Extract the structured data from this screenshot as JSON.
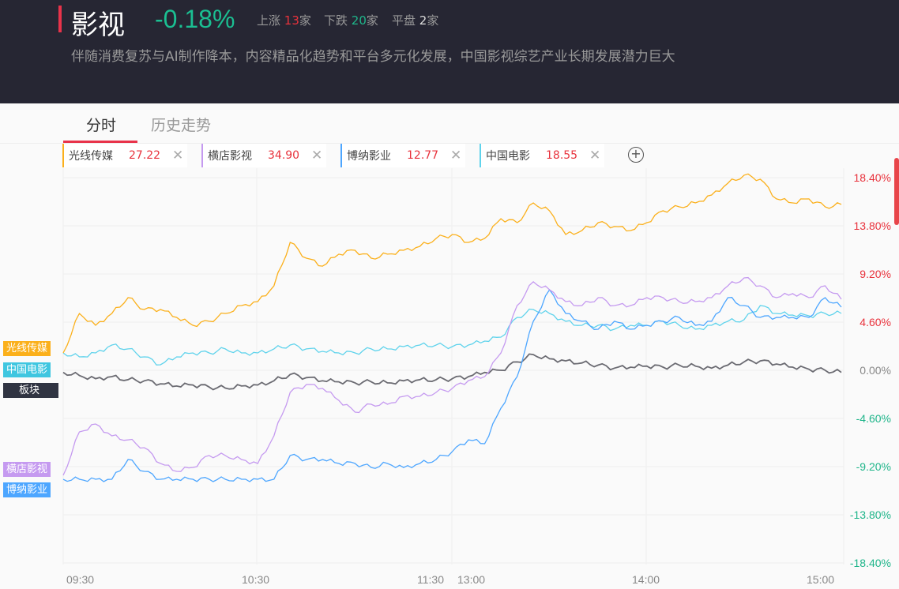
{
  "header": {
    "title": "影视",
    "change": "-0.18%",
    "up_label": "上涨",
    "up_count": "13",
    "down_label": "下跌",
    "down_count": "20",
    "flat_label": "平盘",
    "flat_count": "2",
    "unit": "家",
    "description": "伴随消费复苏与AI制作降本，内容精品化趋势和平台多元化发展，中国影视综艺产业长期发展潜力巨大"
  },
  "tabs": [
    {
      "label": "分时"
    },
    {
      "label": "历史走势"
    }
  ],
  "chips": [
    {
      "name": "光线传媒",
      "price": "27.22",
      "color": "#fbb01b"
    },
    {
      "name": "横店影视",
      "price": "34.90",
      "color": "#c59af0"
    },
    {
      "name": "博纳影业",
      "price": "12.77",
      "color": "#4da6ff"
    },
    {
      "name": "中国电影",
      "price": "18.55",
      "color": "#5fd3ec"
    }
  ],
  "tags": {
    "gx": "光线传媒",
    "zg": "中国电影",
    "bk": "板块",
    "hd": "横店影视",
    "bn": "博纳影业"
  },
  "chart_data": {
    "type": "line",
    "x_note": "5-minute samples 09:30-11:30, 13:00-15:00",
    "xticks": [
      "09:30",
      "10:30",
      "11:30",
      "13:00",
      "14:00",
      "15:00"
    ],
    "yticks": [
      "18.40%",
      "13.80%",
      "9.20%",
      "4.60%",
      "0.00%",
      "-4.60%",
      "-9.20%",
      "-13.80%",
      "-18.40%"
    ],
    "ylim": [
      -18.4,
      18.4
    ],
    "series": [
      {
        "name": "光线传媒",
        "color": "#fbb01b",
        "values": [
          1.66,
          5.43,
          4.3,
          5.43,
          6.94,
          5.81,
          5.81,
          5.05,
          4.3,
          4.68,
          5.43,
          6.18,
          6.56,
          8.07,
          12.22,
          10.71,
          9.95,
          11.09,
          11.46,
          10.71,
          11.09,
          11.46,
          11.84,
          12.59,
          12.97,
          12.22,
          12.59,
          14.48,
          14.1,
          15.99,
          15.23,
          12.97,
          13.35,
          14.1,
          13.73,
          13.35,
          14.1,
          15.23,
          15.61,
          15.99,
          16.74,
          17.87,
          18.63,
          18.25,
          16.37,
          15.99,
          16.37,
          15.61,
          15.84
        ]
      },
      {
        "name": "横店影视",
        "color": "#c59af0",
        "values": [
          -10.03,
          -5.88,
          -5.13,
          -6.26,
          -6.64,
          -7.39,
          -8.9,
          -9.65,
          -9.28,
          -8.14,
          -8.14,
          -8.52,
          -8.9,
          -6.26,
          -2.11,
          -1.36,
          -1.73,
          -2.87,
          -4,
          -3.24,
          -3.24,
          -2.49,
          -2.49,
          -2.11,
          -1.73,
          -0.98,
          -0.6,
          1.66,
          6.18,
          8.45,
          7.69,
          6.56,
          6.18,
          6.94,
          6.18,
          6.18,
          6.94,
          6.94,
          6.56,
          6.56,
          6.94,
          8.07,
          8.82,
          8.07,
          6.94,
          7.32,
          6.94,
          8.07,
          6.79
        ]
      },
      {
        "name": "博纳影业",
        "color": "#4da6ff",
        "values": [
          -10.41,
          -10.41,
          -10.41,
          -10.41,
          -8.52,
          -9.65,
          -10.41,
          -10.41,
          -10.41,
          -10.41,
          -10.41,
          -10.41,
          -10.41,
          -10.41,
          -8.14,
          -8.52,
          -8.52,
          -8.9,
          -8.9,
          -9.28,
          -8.9,
          -9.28,
          -8.9,
          -8.52,
          -7.77,
          -6.64,
          -7.01,
          -3.62,
          -0.6,
          4.68,
          7.69,
          5.43,
          4.68,
          3.92,
          4.68,
          3.92,
          4.3,
          4.68,
          5.05,
          4.3,
          4.68,
          6.94,
          6.18,
          5.05,
          5.05,
          5.05,
          5.05,
          6.94,
          6.03
        ]
      },
      {
        "name": "中国电影",
        "color": "#5fd3ec",
        "values": [
          1.66,
          1.28,
          1.66,
          2.41,
          2.04,
          1.28,
          0.53,
          1.28,
          1.66,
          1.66,
          2.04,
          1.66,
          1.66,
          2.04,
          2.41,
          2.04,
          1.81,
          1.66,
          1.66,
          2.04,
          2.04,
          2.26,
          2.41,
          2.41,
          2.26,
          2.41,
          2.79,
          3.17,
          5.05,
          5.81,
          5.43,
          4.68,
          4.3,
          4.3,
          3.92,
          4.3,
          4.3,
          4.68,
          4.3,
          3.92,
          4.3,
          4.68,
          4.83,
          6.18,
          5.43,
          5.28,
          5.2,
          5.43,
          5.43
        ]
      },
      {
        "name": "板块",
        "color": "#6b6b72",
        "values": [
          -0.2,
          -0.5,
          -0.8,
          -0.6,
          -0.9,
          -1.0,
          -1.3,
          -1.5,
          -1.4,
          -1.6,
          -1.7,
          -1.5,
          -1.4,
          -1.0,
          -0.4,
          -0.7,
          -1.0,
          -1.1,
          -1.2,
          -1.1,
          -1.2,
          -1.0,
          -0.9,
          -0.9,
          -0.8,
          -0.6,
          -0.2,
          0.0,
          0.8,
          1.5,
          1.1,
          0.9,
          0.7,
          0.5,
          0.2,
          0.3,
          0.4,
          0.3,
          0.5,
          0.4,
          0.2,
          0.5,
          0.8,
          0.9,
          0.6,
          0.3,
          0.1,
          0.0,
          -0.2
        ]
      }
    ]
  }
}
